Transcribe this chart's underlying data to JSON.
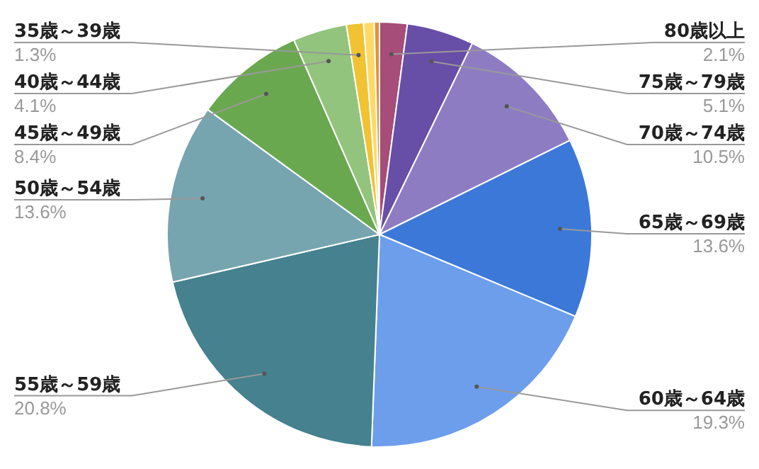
{
  "chart_data": {
    "type": "pie",
    "categories": [
      "80歳以上",
      "75歳～79歳",
      "70歳～74歳",
      "65歳～69歳",
      "60歳～64歳",
      "55歳～59歳",
      "50歳～54歳",
      "45歳～49歳",
      "40歳～44歳",
      "35歳～39歳",
      null,
      null
    ],
    "values": [
      2.1,
      5.1,
      10.5,
      13.6,
      19.3,
      20.8,
      13.6,
      8.4,
      4.1,
      1.3,
      0.8,
      0.4
    ],
    "value_labels": [
      "2.1%",
      "5.1%",
      "10.5%",
      "13.6%",
      "19.3%",
      "20.8%",
      "13.6%",
      "8.4%",
      "4.1%",
      "1.3%",
      null,
      null
    ],
    "colors": [
      "#a64d79",
      "#674ea7",
      "#8e7cc3",
      "#3c78d8",
      "#6d9eeb",
      "#45818e",
      "#76a5af",
      "#6aa84f",
      "#93c47d",
      "#f1c232",
      "#ffd966",
      "#e69138"
    ],
    "legend": false
  }
}
